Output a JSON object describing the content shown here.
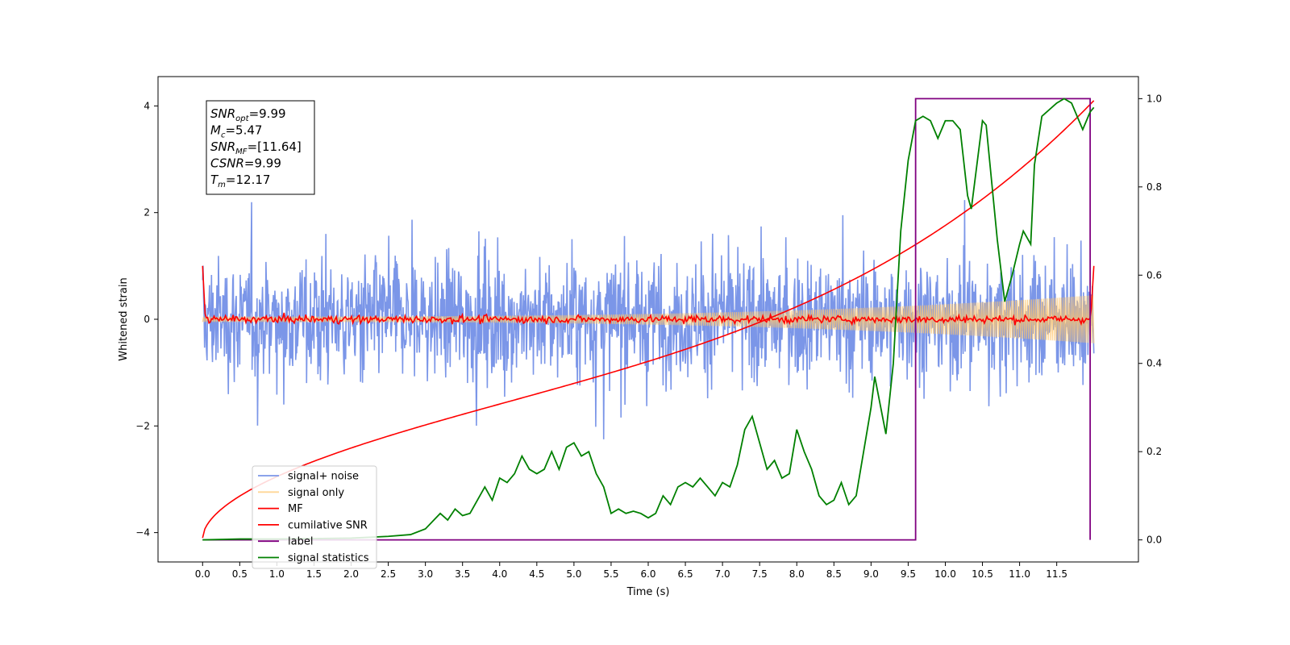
{
  "chart_data": {
    "type": "line",
    "xlabel": "Time (s)",
    "ylabel": "Whitened strain",
    "xlim": [
      -0.6,
      12.6
    ],
    "ylim": [
      -4.55,
      4.55
    ],
    "y2lim": [
      -0.05,
      1.05
    ],
    "grid": false,
    "legend_position": "lower-left",
    "x_ticks": [
      "0.0",
      "0.5",
      "1.0",
      "1.5",
      "2.0",
      "2.5",
      "3.0",
      "3.5",
      "4.0",
      "4.5",
      "5.0",
      "5.5",
      "6.0",
      "6.5",
      "7.0",
      "7.5",
      "8.0",
      "8.5",
      "9.0",
      "9.5",
      "10.0",
      "10.5",
      "11.0",
      "11.5"
    ],
    "y_ticks": [
      "4",
      "2",
      "0",
      "−2",
      "−4"
    ],
    "y2_ticks": [
      "1.0",
      "0.8",
      "0.6",
      "0.4",
      "0.2",
      "0.0"
    ],
    "annotation": {
      "lines": [
        {
          "sym": "SNR",
          "sub": "opt",
          "val": "=9.99"
        },
        {
          "sym": "M",
          "sub": "c",
          "val": "=5.47"
        },
        {
          "sym": "SNR",
          "sub": "MF",
          "val": "=[11.64]"
        },
        {
          "sym": "CSNR",
          "sub": "",
          "val": "=9.99"
        },
        {
          "sym": "T",
          "sub": "m",
          "val": "=12.17"
        }
      ]
    },
    "series": [
      {
        "name": "signal+ noise",
        "color": "#7b96e8",
        "axis": "left",
        "note_noise_amplitude": 1.0
      },
      {
        "name": "signal only",
        "color": "#ffc56b",
        "axis": "left",
        "amp_start": 0.05,
        "amp_end": 0.45,
        "t_start": 0.0,
        "t_end": 12.0
      },
      {
        "name": "MF",
        "color": "#ff0000",
        "axis": "left",
        "noise_amplitude": 0.08
      },
      {
        "name": "cumilative SNR",
        "color": "#ff0000",
        "axis": "left",
        "y_start": -4.1,
        "y_end": 4.1,
        "t_start": 0.0,
        "t_end": 12.0
      },
      {
        "name": "label",
        "color": "#800080",
        "axis": "right",
        "points": [
          [
            0.0,
            0.0
          ],
          [
            9.6,
            0.0
          ],
          [
            9.6,
            1.0
          ],
          [
            11.95,
            1.0
          ],
          [
            11.95,
            0.0
          ]
        ]
      },
      {
        "name": "signal statistics",
        "color": "#008000",
        "axis": "right",
        "points": [
          [
            0.0,
            0.0
          ],
          [
            0.5,
            0.002
          ],
          [
            1.0,
            0.002
          ],
          [
            1.5,
            0.003
          ],
          [
            2.0,
            0.004
          ],
          [
            2.5,
            0.008
          ],
          [
            2.8,
            0.012
          ],
          [
            3.0,
            0.025
          ],
          [
            3.2,
            0.06
          ],
          [
            3.3,
            0.045
          ],
          [
            3.4,
            0.07
          ],
          [
            3.5,
            0.055
          ],
          [
            3.6,
            0.06
          ],
          [
            3.8,
            0.12
          ],
          [
            3.9,
            0.09
          ],
          [
            4.0,
            0.14
          ],
          [
            4.1,
            0.13
          ],
          [
            4.2,
            0.15
          ],
          [
            4.3,
            0.19
          ],
          [
            4.4,
            0.16
          ],
          [
            4.5,
            0.15
          ],
          [
            4.6,
            0.16
          ],
          [
            4.7,
            0.2
          ],
          [
            4.8,
            0.16
          ],
          [
            4.9,
            0.21
          ],
          [
            5.0,
            0.22
          ],
          [
            5.1,
            0.19
          ],
          [
            5.2,
            0.2
          ],
          [
            5.3,
            0.15
          ],
          [
            5.4,
            0.12
          ],
          [
            5.5,
            0.06
          ],
          [
            5.6,
            0.07
          ],
          [
            5.7,
            0.06
          ],
          [
            5.8,
            0.065
          ],
          [
            5.9,
            0.06
          ],
          [
            6.0,
            0.05
          ],
          [
            6.1,
            0.06
          ],
          [
            6.2,
            0.1
          ],
          [
            6.3,
            0.08
          ],
          [
            6.4,
            0.12
          ],
          [
            6.5,
            0.13
          ],
          [
            6.6,
            0.12
          ],
          [
            6.7,
            0.14
          ],
          [
            6.8,
            0.12
          ],
          [
            6.9,
            0.1
          ],
          [
            7.0,
            0.13
          ],
          [
            7.1,
            0.12
          ],
          [
            7.2,
            0.17
          ],
          [
            7.3,
            0.25
          ],
          [
            7.4,
            0.28
          ],
          [
            7.5,
            0.22
          ],
          [
            7.6,
            0.16
          ],
          [
            7.7,
            0.18
          ],
          [
            7.8,
            0.14
          ],
          [
            7.9,
            0.15
          ],
          [
            8.0,
            0.25
          ],
          [
            8.1,
            0.2
          ],
          [
            8.2,
            0.16
          ],
          [
            8.3,
            0.1
          ],
          [
            8.4,
            0.08
          ],
          [
            8.5,
            0.09
          ],
          [
            8.6,
            0.13
          ],
          [
            8.7,
            0.08
          ],
          [
            8.8,
            0.1
          ],
          [
            8.9,
            0.2
          ],
          [
            9.0,
            0.3
          ],
          [
            9.05,
            0.37
          ],
          [
            9.2,
            0.24
          ],
          [
            9.3,
            0.4
          ],
          [
            9.4,
            0.7
          ],
          [
            9.5,
            0.86
          ],
          [
            9.6,
            0.95
          ],
          [
            9.7,
            0.96
          ],
          [
            9.8,
            0.95
          ],
          [
            9.9,
            0.91
          ],
          [
            10.0,
            0.95
          ],
          [
            10.1,
            0.95
          ],
          [
            10.2,
            0.93
          ],
          [
            10.3,
            0.78
          ],
          [
            10.35,
            0.75
          ],
          [
            10.5,
            0.95
          ],
          [
            10.55,
            0.94
          ],
          [
            10.7,
            0.68
          ],
          [
            10.8,
            0.54
          ],
          [
            10.9,
            0.6
          ],
          [
            11.0,
            0.67
          ],
          [
            11.05,
            0.7
          ],
          [
            11.15,
            0.67
          ],
          [
            11.2,
            0.85
          ],
          [
            11.3,
            0.96
          ],
          [
            11.5,
            0.99
          ],
          [
            11.6,
            1.0
          ],
          [
            11.7,
            0.99
          ],
          [
            11.85,
            0.93
          ],
          [
            11.95,
            0.97
          ],
          [
            12.0,
            0.98
          ]
        ]
      }
    ]
  }
}
